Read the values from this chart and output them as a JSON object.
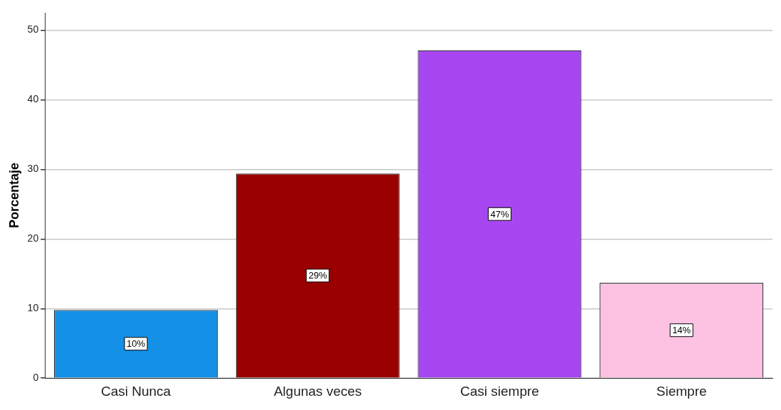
{
  "chart_data": {
    "type": "bar",
    "ylabel": "Porcentaje",
    "categories": [
      "Casi Nunca",
      "Algunas veces",
      "Casi siempre",
      "Siempre"
    ],
    "values": [
      9.8,
      29.4,
      47.1,
      13.7
    ],
    "colors": [
      "#1490e6",
      "#990000",
      "#a747f2",
      "#fdc2e2"
    ],
    "value_labels": [
      "10%",
      "29%",
      "47%",
      "14%"
    ],
    "ylim": [
      0,
      52.5
    ],
    "yticks": [
      0,
      10,
      20,
      30,
      40,
      50
    ],
    "grid": "y",
    "legend": false
  }
}
